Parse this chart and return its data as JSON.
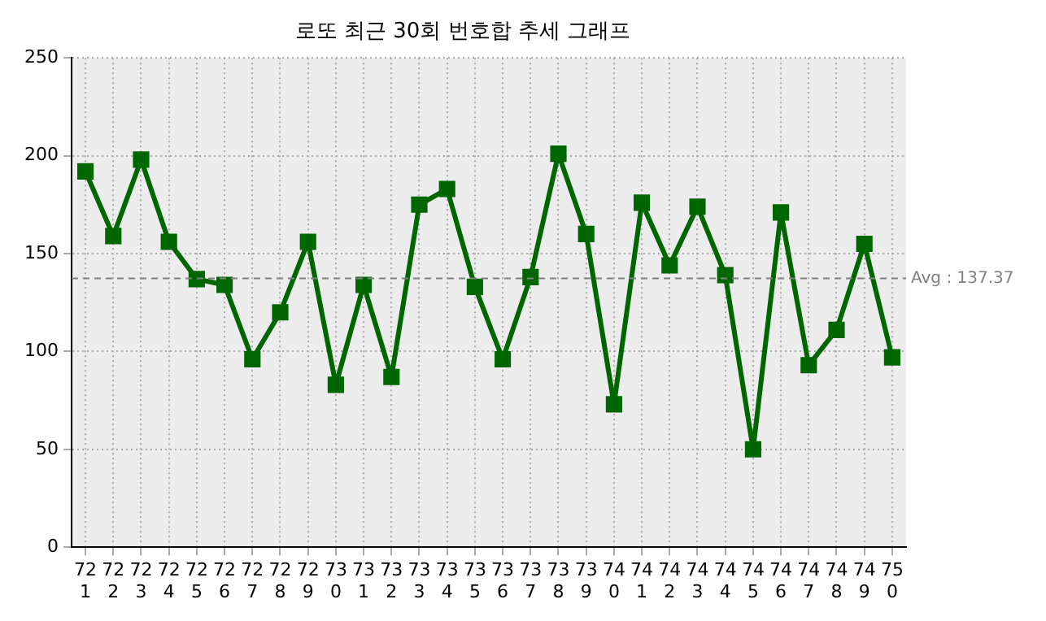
{
  "chart_data": {
    "type": "line",
    "title": "로또 최근 30회 번호합 추세 그래프",
    "categories": [
      "721",
      "722",
      "723",
      "724",
      "725",
      "726",
      "727",
      "728",
      "729",
      "730",
      "731",
      "732",
      "733",
      "734",
      "735",
      "736",
      "737",
      "738",
      "739",
      "740",
      "741",
      "742",
      "743",
      "744",
      "745",
      "746",
      "747",
      "748",
      "749",
      "750"
    ],
    "series": [
      {
        "color": "#006600",
        "values": [
          192,
          159,
          198,
          156,
          137,
          134,
          96,
          120,
          156,
          83,
          134,
          87,
          175,
          183,
          133,
          96,
          138,
          201,
          160,
          73,
          176,
          144,
          174,
          139,
          50,
          171,
          93,
          111,
          155,
          97
        ]
      }
    ],
    "ylim": [
      0,
      250
    ],
    "yticks": [
      0,
      50,
      100,
      150,
      200,
      250
    ],
    "grid": true,
    "legend": false,
    "marker": "square",
    "line_style": "solid",
    "ref_lines": [
      {
        "axis": "y",
        "value": 137.37,
        "label": "Avg : 137.37",
        "color": "#808080",
        "line_style": "dashed"
      }
    ]
  }
}
